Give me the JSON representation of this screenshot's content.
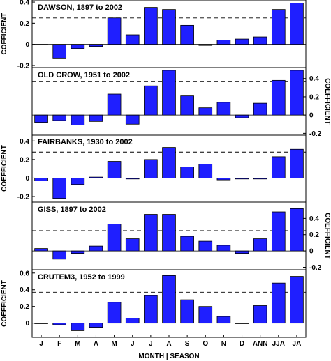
{
  "chart_data": {
    "type": "bar",
    "categories": [
      "J",
      "F",
      "M",
      "A",
      "M",
      "J",
      "J",
      "A",
      "S",
      "O",
      "N",
      "D",
      "ANN",
      "JJA",
      "JA"
    ],
    "xlabel": "MONTH | SEASON",
    "colors": {
      "bar": "#1f1fff",
      "edge": "#000000",
      "threshold": "#000000"
    },
    "panels": [
      {
        "title": "DAWSON, 1897 to 2002",
        "ylabel": "COFFICIENT",
        "ylabel_side": "left",
        "ylim": [
          -0.22,
          0.42
        ],
        "yticks": [
          "-0.2",
          "0",
          "0.2",
          "0.4"
        ],
        "threshold": 0.25,
        "values": [
          0.0,
          -0.13,
          -0.04,
          -0.02,
          0.25,
          0.09,
          0.35,
          0.33,
          0.18,
          -0.01,
          0.04,
          0.05,
          0.07,
          0.33,
          0.39
        ]
      },
      {
        "title": "OLD CROW, 1951 to 2002",
        "ylabel": "COEFFICIENT",
        "ylabel_side": "right",
        "ylim": [
          -0.22,
          0.52
        ],
        "yticks": [
          "-0.2",
          "0",
          "0.2",
          "0.4"
        ],
        "threshold": 0.37,
        "values": [
          -0.08,
          -0.06,
          -0.11,
          -0.07,
          0.23,
          -0.1,
          0.32,
          0.49,
          0.21,
          0.08,
          0.14,
          -0.03,
          0.13,
          0.38,
          0.49
        ]
      },
      {
        "title": "FAIRBANKS, 1930 to 2002",
        "ylabel": "COEFFICIENT",
        "ylabel_side": "left",
        "ylim": [
          -0.26,
          0.47
        ],
        "yticks": [
          "-0.2",
          "0",
          "0.2",
          "0.4"
        ],
        "threshold": 0.28,
        "values": [
          -0.03,
          -0.22,
          -0.07,
          0.01,
          0.18,
          -0.01,
          0.2,
          0.33,
          0.12,
          0.15,
          -0.02,
          -0.01,
          -0.01,
          0.23,
          0.31
        ]
      },
      {
        "title": "GISS, 1897 to 2002",
        "ylabel": "COEFFICIENT",
        "ylabel_side": "right",
        "ylim": [
          -0.23,
          0.6
        ],
        "yticks": [
          "-0.2",
          "0",
          "0.2",
          "0.4"
        ],
        "threshold": 0.25,
        "values": [
          0.03,
          -0.1,
          -0.03,
          0.06,
          0.33,
          0.15,
          0.45,
          0.45,
          0.18,
          0.12,
          0.07,
          -0.03,
          0.15,
          0.48,
          0.52
        ]
      },
      {
        "title": "CRUTEM3, 1952 to 1999",
        "ylabel": "COEFFICIENT",
        "ylabel_side": "left",
        "ylim": [
          -0.17,
          0.64
        ],
        "yticks": [
          "0",
          "0.2",
          "0.4",
          "0.6"
        ],
        "threshold": 0.37,
        "values": [
          0.0,
          -0.02,
          -0.09,
          -0.05,
          0.25,
          0.06,
          0.33,
          0.57,
          0.28,
          0.2,
          0.08,
          0.0,
          0.21,
          0.48,
          0.56
        ]
      }
    ]
  }
}
